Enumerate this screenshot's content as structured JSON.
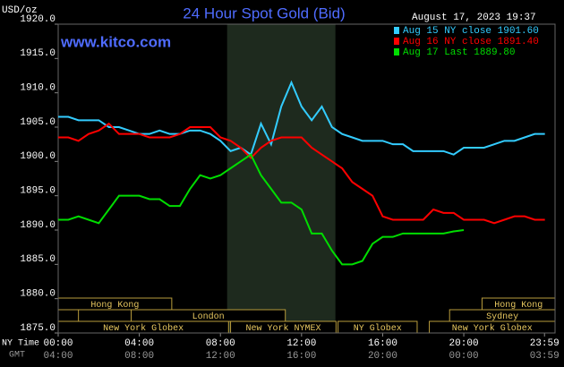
{
  "chart_data": {
    "type": "line",
    "title": "24 Hour Spot Gold (Bid)",
    "y_label": "USD/oz",
    "timestamp": "August 17, 2023 19:37",
    "watermark": "www.kitco.com",
    "x_label": "NY Time",
    "x2_label": "GMT",
    "x": [
      0,
      0.5,
      1,
      1.5,
      2,
      2.5,
      3,
      3.5,
      4,
      4.5,
      5,
      5.5,
      6,
      6.5,
      7,
      7.5,
      8,
      8.5,
      9,
      9.5,
      10,
      10.5,
      11,
      11.5,
      12,
      12.5,
      13,
      13.5,
      14,
      14.5,
      15,
      15.5,
      16,
      16.5,
      17,
      17.5,
      18,
      18.5,
      19,
      19.5,
      20,
      20.5,
      21,
      21.5,
      22,
      22.5,
      23,
      23.5,
      24
    ],
    "series": [
      {
        "name": "Aug 15 NY close 1901.60",
        "color": "#33ccff",
        "values": [
          1906.5,
          1906.5,
          1906,
          1906,
          1906,
          1905,
          1905,
          1904.5,
          1904,
          1904,
          1904.5,
          1904,
          1904,
          1904.5,
          1904.5,
          1904,
          1903,
          1901.5,
          1902,
          1901,
          1905.5,
          1902.5,
          1908,
          1911.5,
          1908,
          1906,
          1908,
          1905,
          1904,
          1903.5,
          1903,
          1903,
          1903,
          1902.5,
          1902.5,
          1901.5,
          1901.5,
          1901.5,
          1901.5,
          1901,
          1902,
          1902,
          1902,
          1902.5,
          1903,
          1903,
          1903.5,
          1904,
          1904
        ]
      },
      {
        "name": "Aug 16 NY close 1891.40",
        "color": "#ff0000",
        "values": [
          1903.5,
          1903.5,
          1903,
          1904,
          1904.5,
          1905.5,
          1904,
          1904,
          1904,
          1903.5,
          1903.5,
          1903.5,
          1904,
          1905,
          1905,
          1905,
          1903.5,
          1903,
          1902,
          1900.5,
          1902,
          1903,
          1903.5,
          1903.5,
          1903.5,
          1902,
          1901,
          1900,
          1899,
          1897,
          1896,
          1895,
          1892,
          1891.5,
          1891.5,
          1891.5,
          1891.5,
          1893,
          1892.5,
          1892.5,
          1891.5,
          1891.5,
          1891.5,
          1891,
          1891.5,
          1892,
          1892,
          1891.5,
          1891.5
        ]
      },
      {
        "name": "Aug 17 Last 1889.80",
        "color": "#00dd00",
        "values": [
          1891.5,
          1891.5,
          1892,
          1891.5,
          1891,
          1893,
          1895,
          1895,
          1895,
          1894.5,
          1894.5,
          1893.5,
          1893.5,
          1896,
          1898,
          1897.5,
          1898,
          1899,
          1900,
          1901,
          1898,
          1896,
          1894,
          1894,
          1893,
          1889.5,
          1889.5,
          1887,
          1885,
          1885,
          1885.5,
          1888,
          1889,
          1889,
          1889.5,
          1889.5,
          1889.5,
          1889.5,
          1889.5,
          1889.8,
          1890,
          null,
          null,
          null,
          null,
          null,
          null,
          null,
          null
        ]
      }
    ],
    "xlim": [
      0,
      24.5
    ],
    "ylim": [
      1875,
      1920
    ],
    "yticks": [
      {
        "value": 1875,
        "label": "1875.0"
      },
      {
        "value": 1880,
        "label": "1880.0"
      },
      {
        "value": 1885,
        "label": "1885.0"
      },
      {
        "value": 1890,
        "label": "1890.0"
      },
      {
        "value": 1895,
        "label": "1895.0"
      },
      {
        "value": 1900,
        "label": "1900.0"
      },
      {
        "value": 1905,
        "label": "1905.0"
      },
      {
        "value": 1910,
        "label": "1910.0"
      },
      {
        "value": 1915,
        "label": "1915.0"
      },
      {
        "value": 1920,
        "label": "1920.0"
      }
    ],
    "xticks": [
      {
        "value": 0,
        "label": "00:00"
      },
      {
        "value": 4,
        "label": "04:00"
      },
      {
        "value": 8,
        "label": "08:00"
      },
      {
        "value": 12,
        "label": "12:00"
      },
      {
        "value": 16,
        "label": "16:00"
      },
      {
        "value": 20,
        "label": "20:00"
      },
      {
        "value": 23.98,
        "label": "23:59"
      }
    ],
    "gmt_ticks": [
      "04:00",
      "08:00",
      "12:00",
      "16:00",
      "20:00",
      "00:00",
      "03:59"
    ],
    "highlight": [
      8.33,
      13.67
    ],
    "sessions": [
      [
        {
          "label": "Hong Kong",
          "start": 0,
          "end": 5.6
        },
        {
          "label": "Hong Kong",
          "start": 20.9,
          "end": 24.5
        }
      ],
      [
        {
          "label": null,
          "start": 0,
          "end": 1
        },
        {
          "label": "London",
          "start": 3.6,
          "end": 11.2
        },
        {
          "label": "Sydney",
          "start": 19.3,
          "end": 24.5
        }
      ],
      [
        {
          "label": "New York Globex",
          "start": 0,
          "end": 8.4
        },
        {
          "label": "New York NYMEX",
          "start": 8.5,
          "end": 13.7
        },
        {
          "label": "NY Globex",
          "start": 13.8,
          "end": 17.7
        },
        {
          "label": "New York Globex",
          "start": 18.3,
          "end": 24.5
        }
      ]
    ],
    "grid": false
  }
}
